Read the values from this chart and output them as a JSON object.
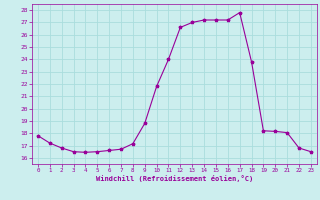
{
  "xlabel": "Windchill (Refroidissement éolien,°C)",
  "x_values": [
    0,
    1,
    2,
    3,
    4,
    5,
    6,
    7,
    8,
    9,
    10,
    11,
    12,
    13,
    14,
    15,
    16,
    17,
    18,
    19,
    20,
    21,
    22,
    23
  ],
  "y_values": [
    17.8,
    17.2,
    16.8,
    16.5,
    16.45,
    16.5,
    16.6,
    16.7,
    17.15,
    18.8,
    21.8,
    24.0,
    26.6,
    27.0,
    27.2,
    27.2,
    27.2,
    27.8,
    23.8,
    18.2,
    18.15,
    18.05,
    16.8,
    16.5
  ],
  "line_color": "#990099",
  "marker": "*",
  "bg_color": "#cceeee",
  "grid_color": "#aadddd",
  "text_color": "#990099",
  "ylim_min": 15.5,
  "ylim_max": 28.5,
  "xlim_min": -0.5,
  "xlim_max": 23.5,
  "yticks": [
    16,
    17,
    18,
    19,
    20,
    21,
    22,
    23,
    24,
    25,
    26,
    27,
    28
  ],
  "xticks": [
    0,
    1,
    2,
    3,
    4,
    5,
    6,
    7,
    8,
    9,
    10,
    11,
    12,
    13,
    14,
    15,
    16,
    17,
    18,
    19,
    20,
    21,
    22,
    23
  ]
}
